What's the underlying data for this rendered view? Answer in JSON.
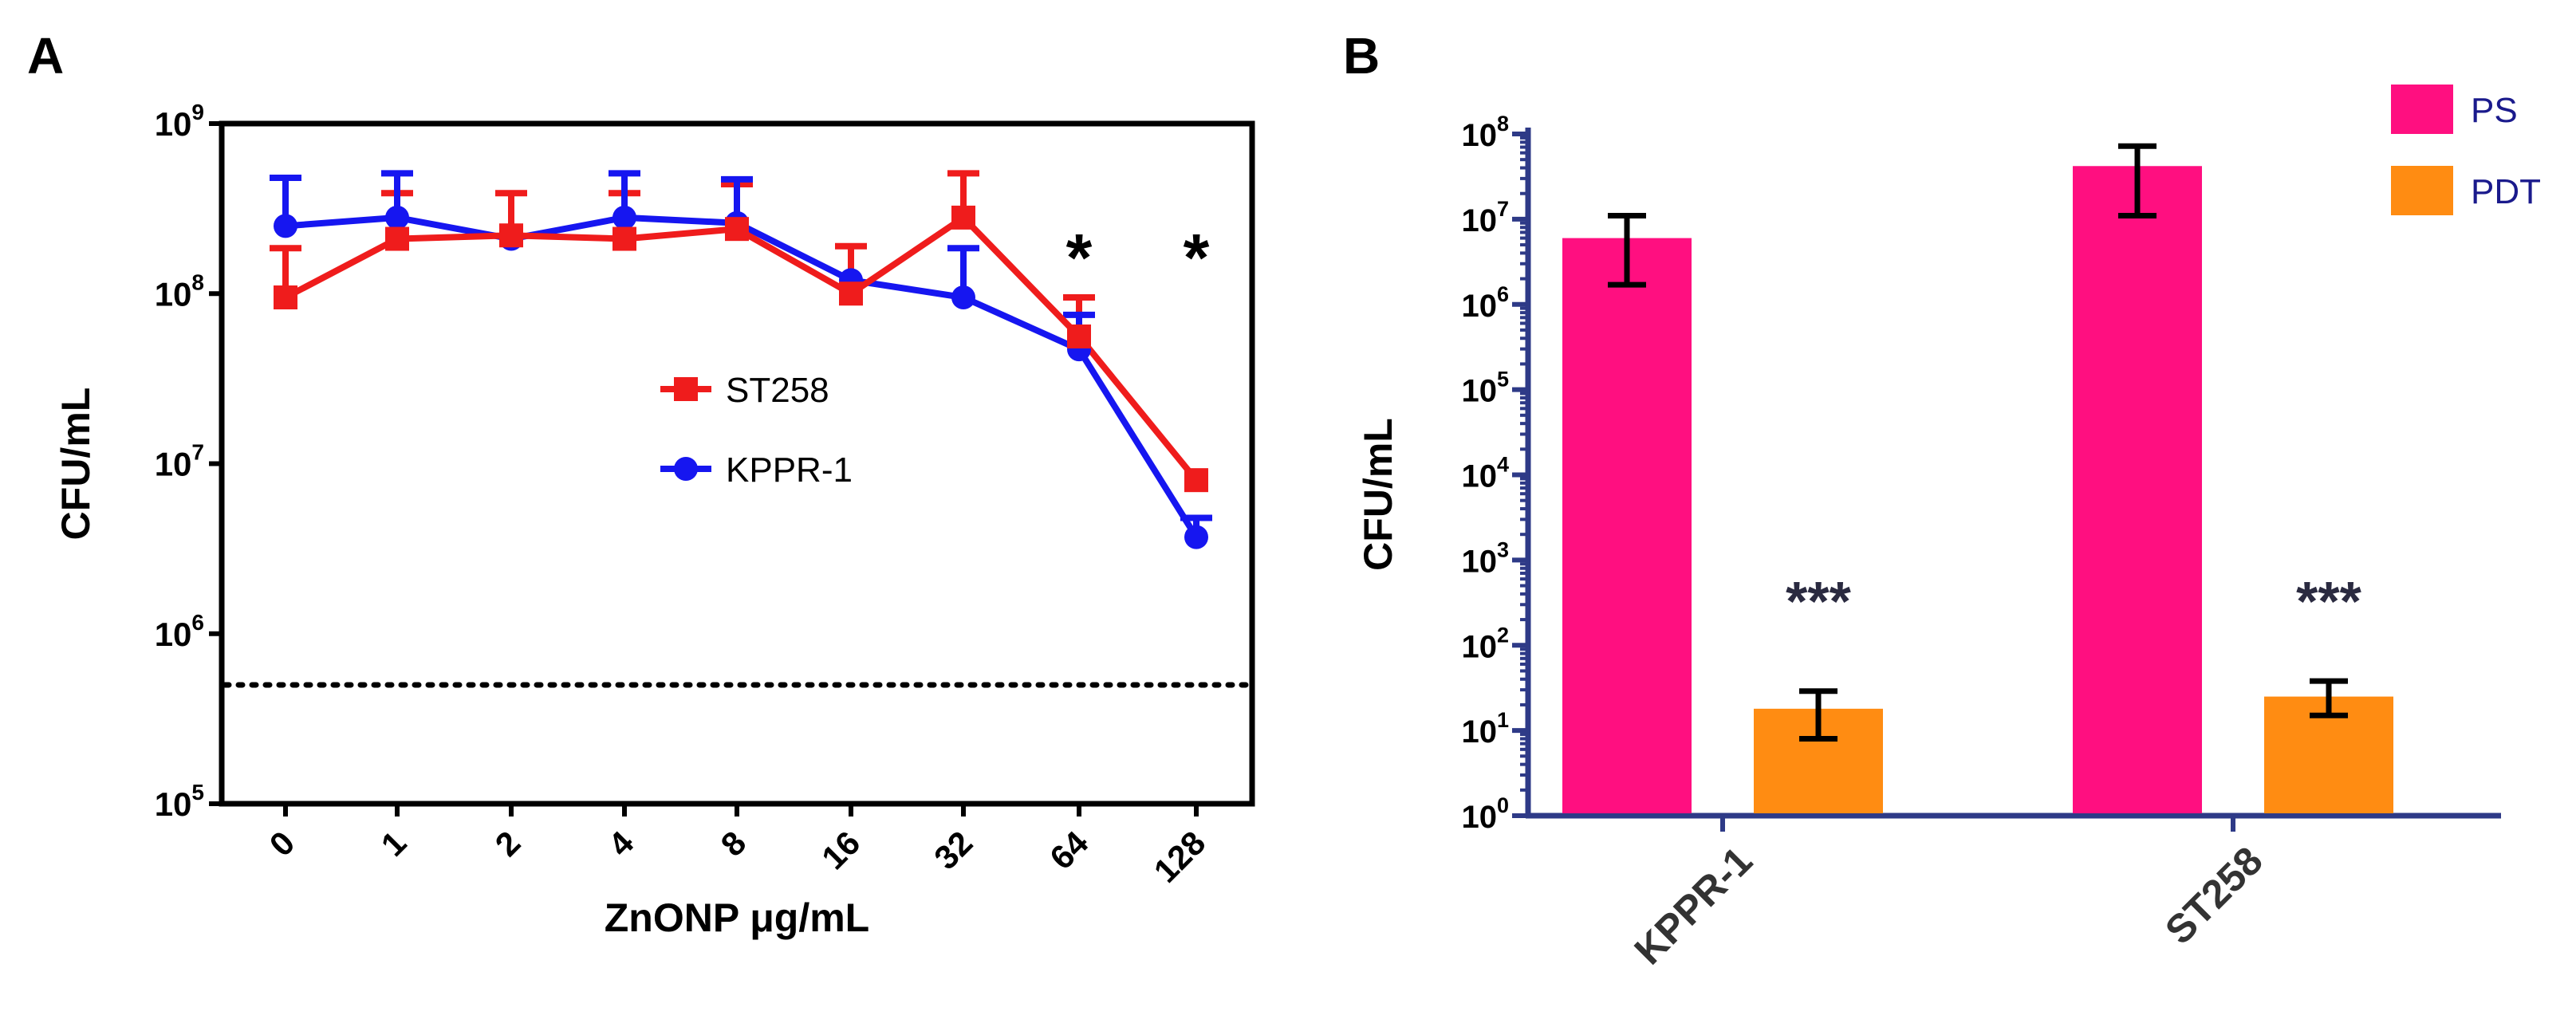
{
  "panels": {
    "a": {
      "letter": "A"
    },
    "b": {
      "letter": "B"
    }
  },
  "chart_data": [
    {
      "type": "line",
      "panel": "A",
      "title": "",
      "xlabel": "ZnONP μg/mL",
      "ylabel": "CFU/mL",
      "yscale": "log10",
      "ylim": [
        100000,
        1000000000
      ],
      "y_ticks": [
        {
          "exp": "5",
          "value": 100000
        },
        {
          "exp": "6",
          "value": 1000000
        },
        {
          "exp": "7",
          "value": 10000000
        },
        {
          "exp": "8",
          "value": 100000000
        },
        {
          "exp": "9",
          "value": 1000000000
        }
      ],
      "categories": [
        "0",
        "1",
        "2",
        "4",
        "8",
        "16",
        "32",
        "64",
        "128"
      ],
      "series": [
        {
          "name": "ST258",
          "color": "#ef1c1c",
          "marker": "square",
          "values": [
            95000000,
            210000000,
            220000000,
            210000000,
            240000000,
            100000000,
            280000000,
            56000000,
            8000000
          ],
          "error_upper": [
            185000000,
            390000000,
            390000000,
            390000000,
            440000000,
            190000000,
            510000000,
            95000000,
            8000000
          ]
        },
        {
          "name": "KPPR-1",
          "color": "#1616f0",
          "marker": "circle",
          "values": [
            250000000,
            280000000,
            210000000,
            280000000,
            260000000,
            120000000,
            95000000,
            47000000,
            3700000
          ],
          "error_upper": [
            480000000,
            510000000,
            210000000,
            510000000,
            470000000,
            120000000,
            185000000,
            75000000,
            4800000
          ]
        }
      ],
      "reference_line": {
        "value": 500000,
        "style": "dotted"
      },
      "significance": [
        {
          "category": "64",
          "label": "*"
        },
        {
          "category": "128",
          "label": "*"
        }
      ],
      "legend": {
        "position": "center-right"
      }
    },
    {
      "type": "bar",
      "panel": "B",
      "title": "",
      "xlabel": "",
      "ylabel": "CFU/mL",
      "yscale": "log10",
      "ylim": [
        1,
        100000000
      ],
      "y_ticks": [
        {
          "exp": "0",
          "value": 1
        },
        {
          "exp": "1",
          "value": 10
        },
        {
          "exp": "2",
          "value": 100
        },
        {
          "exp": "3",
          "value": 1000
        },
        {
          "exp": "4",
          "value": 10000
        },
        {
          "exp": "5",
          "value": 100000
        },
        {
          "exp": "6",
          "value": 1000000
        },
        {
          "exp": "7",
          "value": 10000000
        },
        {
          "exp": "8",
          "value": 100000000
        }
      ],
      "categories": [
        "KPPR-1",
        "ST258"
      ],
      "series": [
        {
          "name": "PS",
          "color": "#ff0f80",
          "values": [
            6000000,
            42000000
          ],
          "error_lower": [
            1700000,
            11000000
          ],
          "error_upper": [
            11000000,
            72000000
          ]
        },
        {
          "name": "PDT",
          "color": "#ff8c12",
          "values": [
            18,
            25
          ],
          "error_lower": [
            8,
            15
          ],
          "error_upper": [
            29,
            38
          ]
        }
      ],
      "significance": [
        {
          "category": "KPPR-1",
          "series": "PDT",
          "label": "***"
        },
        {
          "category": "ST258",
          "series": "PDT",
          "label": "***"
        }
      ],
      "legend": {
        "position": "top-right"
      }
    }
  ]
}
